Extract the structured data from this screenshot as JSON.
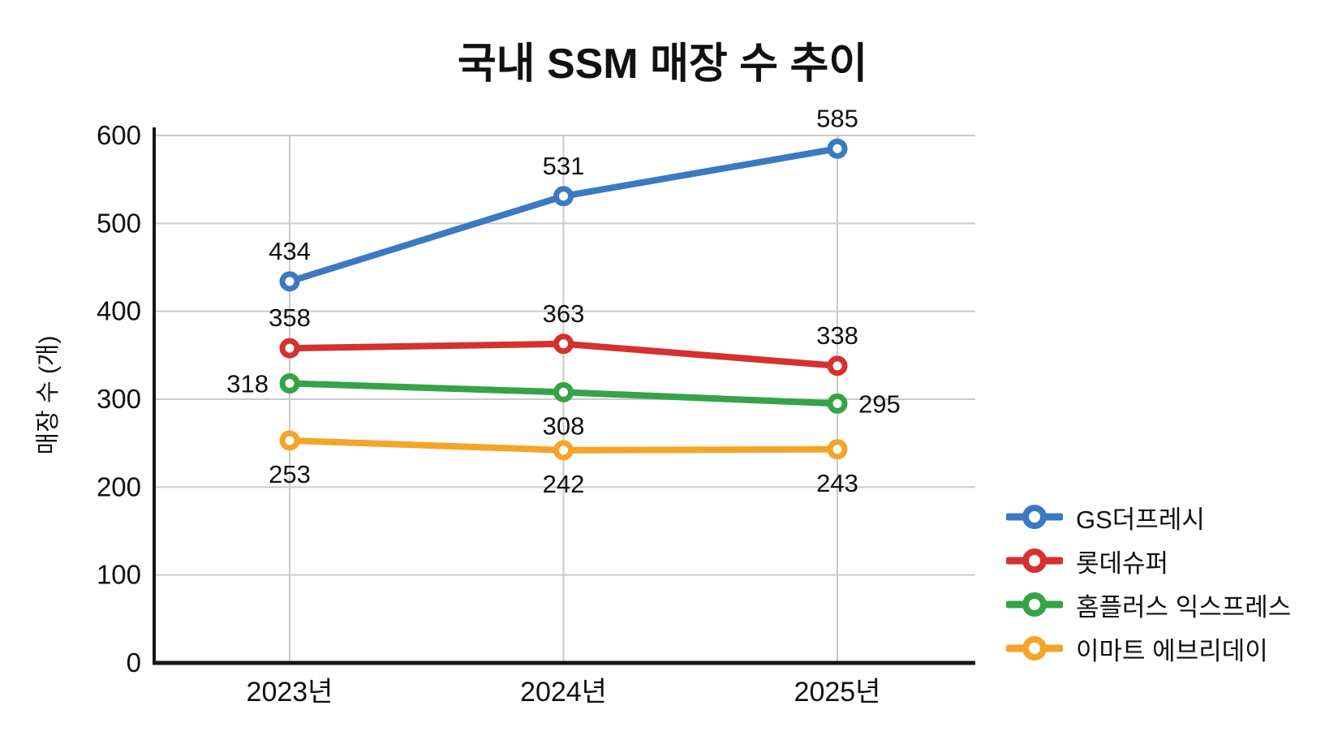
{
  "title": "국내 SSM 매장 수 추이",
  "chart_data": {
    "type": "line",
    "title": "국내 SSM 매장 수 추이",
    "categories": [
      "2023년",
      "2024년",
      "2025년"
    ],
    "xlabel": "",
    "ylabel": "매장 수 (개)",
    "ylim": [
      0,
      600
    ],
    "yticks": [
      0,
      100,
      200,
      300,
      400,
      500,
      600
    ],
    "grid": true,
    "marker": "open-circle",
    "legend_position": "right",
    "series": [
      {
        "name": "GS더프레시",
        "color": "#3B79C2",
        "values": [
          434,
          531,
          585
        ],
        "label_placement": [
          "above",
          "above",
          "above"
        ]
      },
      {
        "name": "롯데슈퍼",
        "color": "#D5312F",
        "values": [
          358,
          363,
          338
        ],
        "label_placement": [
          "above",
          "above",
          "above"
        ]
      },
      {
        "name": "홈플러스 익스프레스",
        "color": "#35A348",
        "values": [
          318,
          308,
          295
        ],
        "label_placement": [
          "left",
          "below",
          "right"
        ]
      },
      {
        "name": "이마트 에브리데이",
        "color": "#F5A42A",
        "values": [
          253,
          242,
          243
        ],
        "label_placement": [
          "below",
          "below",
          "below"
        ]
      }
    ],
    "colors": {
      "grid": "#CBCBCB",
      "axis": "#161616",
      "text": "#111111",
      "background": "#FFFFFF"
    }
  }
}
